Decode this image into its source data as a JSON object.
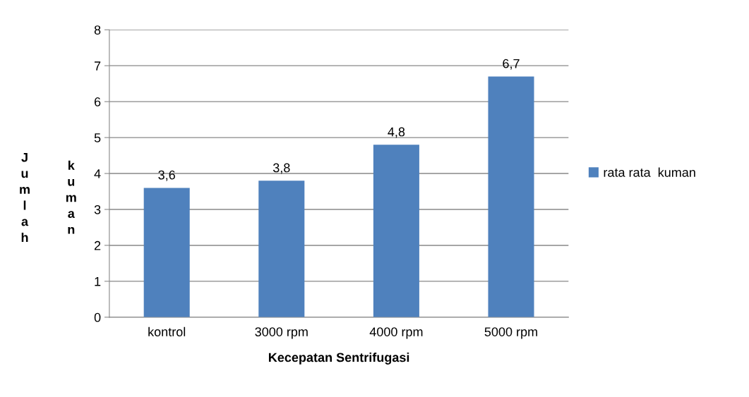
{
  "chart_data": {
    "type": "bar",
    "xlabel": "Kecepatan Sentrifugasi",
    "ylabel": "Jumlah kuman",
    "categories": [
      "kontrol",
      "3000 rpm",
      "4000 rpm",
      "5000 rpm"
    ],
    "series": [
      {
        "name": "rata rata  kuman",
        "color": "#4f81bd",
        "values": [
          3.6,
          3.8,
          4.8,
          6.7
        ],
        "value_labels": [
          "3,6",
          "3,8",
          "4,8",
          "6,7"
        ]
      }
    ],
    "ylim": [
      0,
      8
    ],
    "yticks": [
      0,
      1,
      2,
      3,
      4,
      5,
      6,
      7,
      8
    ],
    "grid": "y",
    "legend": "right"
  }
}
